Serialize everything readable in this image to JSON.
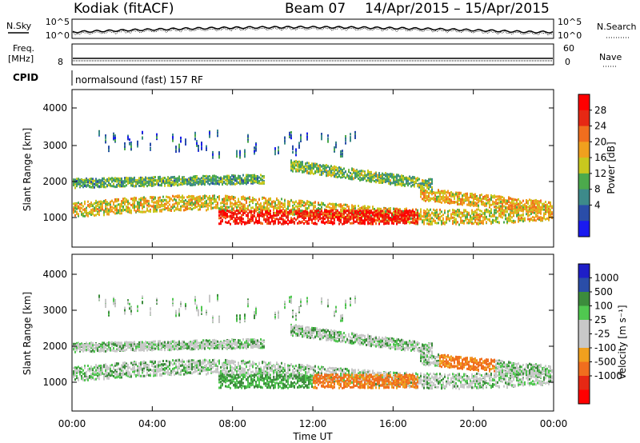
{
  "header": {
    "station": "Kodiak (fitACF)",
    "beam": "Beam 07",
    "dates": "14/Apr/2015 – 15/Apr/2015"
  },
  "param_panels": {
    "nsky_label": "N.Sky",
    "nsearch_label": "N.Search",
    "noise_ticks": [
      "10^5",
      "10^0"
    ],
    "freq_label_1": "Freq.",
    "freq_label_2": "[MHz]",
    "freq_ticks": [
      "8",
      ""
    ],
    "nave_label": "Nave",
    "nave_ticks": [
      "60",
      "0"
    ],
    "cpid_label": "CPID",
    "cpid_text": "normalsound (fast) 157 RF"
  },
  "colors": {
    "power_scale": [
      "#1a1af0",
      "#2a4da8",
      "#3d8a8a",
      "#4caa4c",
      "#c8c81e",
      "#f0a01e",
      "#f06e1e",
      "#e62814",
      "#ff0000"
    ],
    "velocity_scale": [
      "#1e1ec8",
      "#2a4da8",
      "#3c8c3c",
      "#50c850",
      "#c8c8c8",
      "#c8c8c8",
      "#f0a01e",
      "#f06e1e",
      "#e62814",
      "#ff0000"
    ]
  },
  "chart_data": [
    {
      "type": "heatmap",
      "title": "Power",
      "ylabel": "Slant Range [km]",
      "ylim": [
        180,
        4600
      ],
      "y_ticks": [
        "4000",
        "3000",
        "2000",
        "1000"
      ],
      "colorbar_label": "Power [dB]",
      "colorbar_ticks": [
        "28",
        "24",
        "20",
        "16",
        "12",
        "8",
        "4"
      ],
      "clim": [
        0,
        32
      ]
    },
    {
      "type": "heatmap",
      "title": "Velocity",
      "ylabel": "Slant Range [km]",
      "xlabel": "Time UT",
      "ylim": [
        180,
        4600
      ],
      "y_ticks": [
        "4000",
        "3000",
        "2000",
        "1000"
      ],
      "x_ticks": [
        "00:00",
        "04:00",
        "08:00",
        "12:00",
        "16:00",
        "20:00",
        "00:00"
      ],
      "colorbar_label": "Velocity [m s⁻¹]",
      "colorbar_ticks": [
        "1000",
        "500",
        "100",
        "25",
        "-25",
        "-100",
        "-500",
        "-1000"
      ]
    }
  ]
}
